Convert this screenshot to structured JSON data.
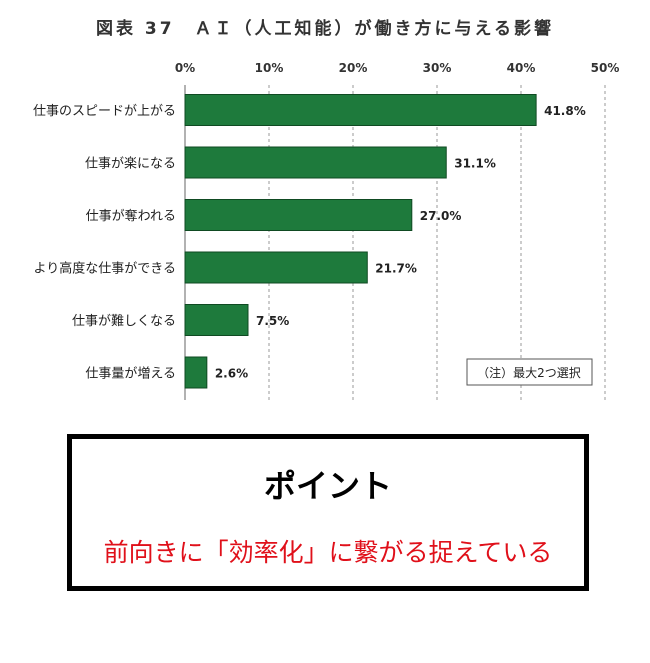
{
  "chart_data": {
    "type": "bar",
    "orientation": "horizontal",
    "title": "図表 37　ＡＩ（人工知能）が働き方に与える影響",
    "categories": [
      "仕事のスピードが上がる",
      "仕事が楽になる",
      "仕事が奪われる",
      "より高度な仕事ができる",
      "仕事が難しくなる",
      "仕事量が増える"
    ],
    "values": [
      41.8,
      31.1,
      27.0,
      21.7,
      7.5,
      2.6
    ],
    "value_labels": [
      "41.8%",
      "31.1%",
      "27.0%",
      "21.7%",
      "7.5%",
      "2.6%"
    ],
    "x_ticks": [
      "0%",
      "10%",
      "20%",
      "30%",
      "40%",
      "50%"
    ],
    "xlim": [
      0,
      50
    ],
    "grid": "vertical-dashed",
    "axis_position": "top",
    "bar_color": "#1e7a3c",
    "note": "（注）最大2つ選択"
  },
  "point": {
    "heading": "ポイント",
    "text": "前向きに「効率化」に繋がる捉えている",
    "text_color": "#e0101a"
  }
}
